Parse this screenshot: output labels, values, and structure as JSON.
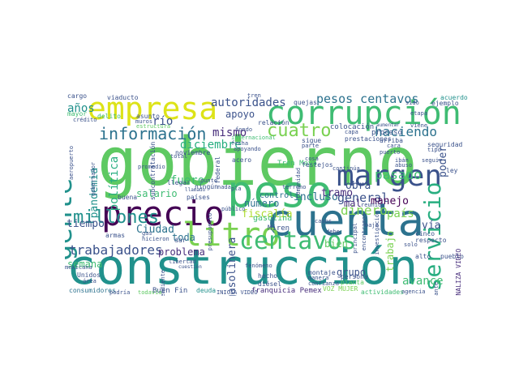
{
  "palette": {
    "yellow": "#dde318",
    "lime": "#addc30",
    "lightgreen": "#7ad151",
    "green": "#5ec962",
    "seagreen": "#3fbc73",
    "jade": "#28ae80",
    "teal": "#21918c",
    "steel": "#2c728e",
    "blue": "#3b528b",
    "indigo": "#472d7b",
    "purple": "#440154"
  },
  "words": [
    {
      "text": "gobierno",
      "color": "#5ec962"
    },
    {
      "text": "construcción",
      "color": "#21918c"
    },
    {
      "text": "peso",
      "color": "#3fbc73"
    },
    {
      "text": "cuenta",
      "color": "#2c728e"
    },
    {
      "text": "empresa",
      "color": "#dde318"
    },
    {
      "text": "corrupción",
      "color": "#3fbc73"
    },
    {
      "text": "precio",
      "color": "#440154"
    },
    {
      "text": "litro",
      "color": "#7ad151"
    },
    {
      "text": "margen",
      "color": "#3b528b"
    },
    {
      "text": "gente",
      "color": "#21918c"
    },
    {
      "text": "servicio",
      "color": "#28ae80"
    },
    {
      "text": "centavos",
      "color": "#3fbc73"
    },
    {
      "text": "información",
      "color": "#2c728e"
    },
    {
      "text": "millones",
      "color": "#21918c"
    },
    {
      "text": "cuatro",
      "color": "#7ad151"
    },
    {
      "text": "pesos centavos",
      "color": "#2c728e"
    },
    {
      "text": "trabajadores",
      "color": "#3b528b"
    },
    {
      "text": "diciembre",
      "color": "#28ae80"
    },
    {
      "text": "autoridades",
      "color": "#3b528b"
    },
    {
      "text": "haciendo",
      "color": "#2c728e"
    },
    {
      "text": "pasado",
      "color": "#3fbc73"
    },
    {
      "text": "general",
      "color": "#3b528b"
    },
    {
      "text": "dinero",
      "color": "#7ad151"
    },
    {
      "text": "mismo",
      "color": "#472d7b"
    },
    {
      "text": "apoyo",
      "color": "#3b528b"
    },
    {
      "text": "años",
      "color": "#21918c"
    },
    {
      "text": "río",
      "color": "#3b528b"
    },
    {
      "text": "fuero",
      "color": "#3fbc73"
    },
    {
      "text": "número",
      "color": "#2c728e"
    },
    {
      "text": "incluso",
      "color": "#2c728e"
    },
    {
      "text": "tramo",
      "color": "#472d7b"
    },
    {
      "text": "fiscalía",
      "color": "#addc30"
    },
    {
      "text": "salario",
      "color": "#3fbc73"
    },
    {
      "text": "tiempo",
      "color": "#3b528b"
    },
    {
      "text": "Ciudad",
      "color": "#2c728e"
    },
    {
      "text": "semana",
      "color": "#3fbc73"
    },
    {
      "text": "toda",
      "color": "#2c728e"
    },
    {
      "text": "problema",
      "color": "#472d7b"
    },
    {
      "text": "grupo",
      "color": "#3b528b"
    },
    {
      "text": "bien",
      "color": "#5ec962"
    },
    {
      "text": "avance",
      "color": "#3fbc73"
    },
    {
      "text": "vía",
      "color": "#3b528b"
    },
    {
      "text": "país",
      "color": "#7ad151"
    },
    {
      "text": "manejo",
      "color": "#440154"
    },
    {
      "text": "obra",
      "color": "#3b528b"
    },
    {
      "text": "mal",
      "color": "#472d7b"
    },
    {
      "text": "poder",
      "color": "#3b528b"
    },
    {
      "text": "política",
      "color": "#28ae80"
    },
    {
      "text": "pandemia",
      "color": "#21918c"
    },
    {
      "text": "gasolinera",
      "color": "#3b528b"
    },
    {
      "text": "trabajo",
      "color": "#7ad151"
    },
    {
      "text": "Tren Maya",
      "color": "#3fbc73"
    },
    {
      "text": "Buen Fin",
      "color": "#3b528b"
    },
    {
      "text": "franquicia Pemex",
      "color": "#472d7b"
    },
    {
      "text": "control",
      "color": "#2c728e"
    },
    {
      "text": "gasolina",
      "color": "#3fbc73"
    },
    {
      "text": "Miren",
      "color": "#3b528b"
    },
    {
      "text": "consumidores",
      "color": "#2c728e"
    },
    {
      "text": "VOZ MUJER",
      "color": "#7ad151"
    },
    {
      "text": "actividades",
      "color": "#3fbc73"
    },
    {
      "text": "deuda",
      "color": "#21918c"
    },
    {
      "text": "INICIA VIDEO",
      "color": "#3b528b"
    },
    {
      "text": "FINALIZA VIDEO",
      "color": "#472d7b"
    },
    {
      "text": "proceso",
      "color": "#3b528b"
    },
    {
      "text": "colocación",
      "color": "#3b528b"
    },
    {
      "text": "acuerdo",
      "color": "#21918c"
    },
    {
      "text": "quejas",
      "color": "#3b528b"
    },
    {
      "text": "sido",
      "color": "#3b528b"
    },
    {
      "text": "ejemplo",
      "color": "#3b528b"
    },
    {
      "text": "cargo",
      "color": "#3b528b"
    },
    {
      "text": "viaducto",
      "color": "#3b528b"
    },
    {
      "text": "delito",
      "color": "#3fbc73"
    },
    {
      "text": "asunto",
      "color": "#3b528b"
    },
    {
      "text": "mayor",
      "color": "#3fbc73"
    },
    {
      "text": "estructura",
      "color": "#5ec962"
    },
    {
      "text": "relación",
      "color": "#3b528b"
    },
    {
      "text": "internacional",
      "color": "#3fbc73"
    },
    {
      "text": "fecha",
      "color": "#3b528b"
    },
    {
      "text": "apoyando",
      "color": "#3b528b"
    },
    {
      "text": "acero",
      "color": "#3b528b"
    },
    {
      "text": "noviembre",
      "color": "#3b528b"
    },
    {
      "text": "subcontratación",
      "color": "#3b528b"
    },
    {
      "text": "aeropuerto",
      "color": "#3b528b"
    },
    {
      "text": "empleo",
      "color": "#3b528b"
    },
    {
      "text": "armas",
      "color": "#3b528b"
    },
    {
      "text": "buena",
      "color": "#3b528b"
    },
    {
      "text": "ningún",
      "color": "#3b528b"
    },
    {
      "text": "llamado",
      "color": "#3b528b"
    },
    {
      "text": "dar",
      "color": "#3b528b"
    },
    {
      "text": "presupuesto",
      "color": "#3b528b"
    },
    {
      "text": "mexicana",
      "color": "#3b528b"
    },
    {
      "text": "Unidos",
      "color": "#3b528b"
    },
    {
      "text": "área",
      "color": "#3b528b"
    },
    {
      "text": "podría",
      "color": "#3b528b"
    },
    {
      "text": "todavía",
      "color": "#5ec962"
    },
    {
      "text": "pendiente",
      "color": "#3b528b"
    },
    {
      "text": "cuestión",
      "color": "#3b528b"
    },
    {
      "text": "hecho",
      "color": "#3b528b"
    },
    {
      "text": "diésel",
      "color": "#3b528b"
    },
    {
      "text": "montaje",
      "color": "#3b528b"
    },
    {
      "text": "manera",
      "color": "#3b528b"
    },
    {
      "text": "persona",
      "color": "#3b528b"
    },
    {
      "text": "planta",
      "color": "#5ec962"
    },
    {
      "text": "agencia",
      "color": "#3b528b"
    },
    {
      "text": "importante",
      "color": "#3b528b"
    },
    {
      "text": "alto",
      "color": "#3b528b"
    },
    {
      "text": "pueblo",
      "color": "#3b528b"
    },
    {
      "text": "respecto",
      "color": "#3b528b"
    },
    {
      "text": "cinco",
      "color": "#3b528b"
    },
    {
      "text": "solo",
      "color": "#3b528b"
    },
    {
      "text": "casos",
      "color": "#3b528b"
    },
    {
      "text": "debe",
      "color": "#3b528b"
    },
    {
      "text": "seguridad",
      "color": "#3b528b"
    },
    {
      "text": "bajo",
      "color": "#3b528b"
    },
    {
      "text": "tipo",
      "color": "#3b528b"
    },
    {
      "text": "puerto",
      "color": "#3b528b"
    },
    {
      "text": "cara",
      "color": "#3b528b"
    },
    {
      "text": "aumentar",
      "color": "#3b528b"
    },
    {
      "text": "viene",
      "color": "#3b528b"
    },
    {
      "text": "etapa",
      "color": "#3b528b"
    },
    {
      "text": "arriba",
      "color": "#3b528b"
    },
    {
      "text": "prestaciones",
      "color": "#3b528b"
    },
    {
      "text": "capa",
      "color": "#3b528b"
    },
    {
      "text": "parte",
      "color": "#3b528b"
    },
    {
      "text": "sigue",
      "color": "#3b528b"
    },
    {
      "text": "federal",
      "color": "#3b528b"
    },
    {
      "text": "total",
      "color": "#3b528b"
    },
    {
      "text": "muros",
      "color": "#3b528b"
    },
    {
      "text": "crédito",
      "color": "#3b528b"
    },
    {
      "text": "festejos",
      "color": "#3b528b"
    },
    {
      "text": "gobernador",
      "color": "#3b528b"
    },
    {
      "text": "público",
      "color": "#3b528b"
    },
    {
      "text": "libertad",
      "color": "#3b528b"
    },
    {
      "text": "países",
      "color": "#3b528b"
    },
    {
      "text": "punto",
      "color": "#3b528b"
    },
    {
      "text": "gas",
      "color": "#3b528b"
    },
    {
      "text": "tren",
      "color": "#3b528b"
    },
    {
      "text": "llegar",
      "color": "#3b528b"
    },
    {
      "text": "reunión",
      "color": "#3b528b"
    },
    {
      "text": "encontramos",
      "color": "#3b528b"
    },
    {
      "text": "investigación",
      "color": "#3b528b"
    },
    {
      "text": "continúa",
      "color": "#3b528b"
    },
    {
      "text": "hicieron",
      "color": "#3b528b"
    },
    {
      "text": "promedio",
      "color": "#3b528b"
    },
    {
      "text": "fondo",
      "color": "#3b528b"
    },
    {
      "text": "principal",
      "color": "#3b528b"
    },
    {
      "text": "ibán",
      "color": "#3b528b"
    },
    {
      "text": "abuso",
      "color": "#3b528b"
    },
    {
      "text": "ley",
      "color": "#3b528b"
    },
    {
      "text": "pla",
      "color": "#3b528b"
    },
    {
      "text": "fenómeno",
      "color": "#3b528b"
    },
    {
      "text": "confianza",
      "color": "#3b528b"
    },
    {
      "text": "cosa",
      "color": "#3b528b"
    },
    {
      "text": "seguir",
      "color": "#3b528b"
    },
    {
      "text": "nada",
      "color": "#3b528b"
    },
    {
      "text": "terreno",
      "color": "#3b528b"
    },
    {
      "text": "comunidad",
      "color": "#3b528b"
    }
  ]
}
